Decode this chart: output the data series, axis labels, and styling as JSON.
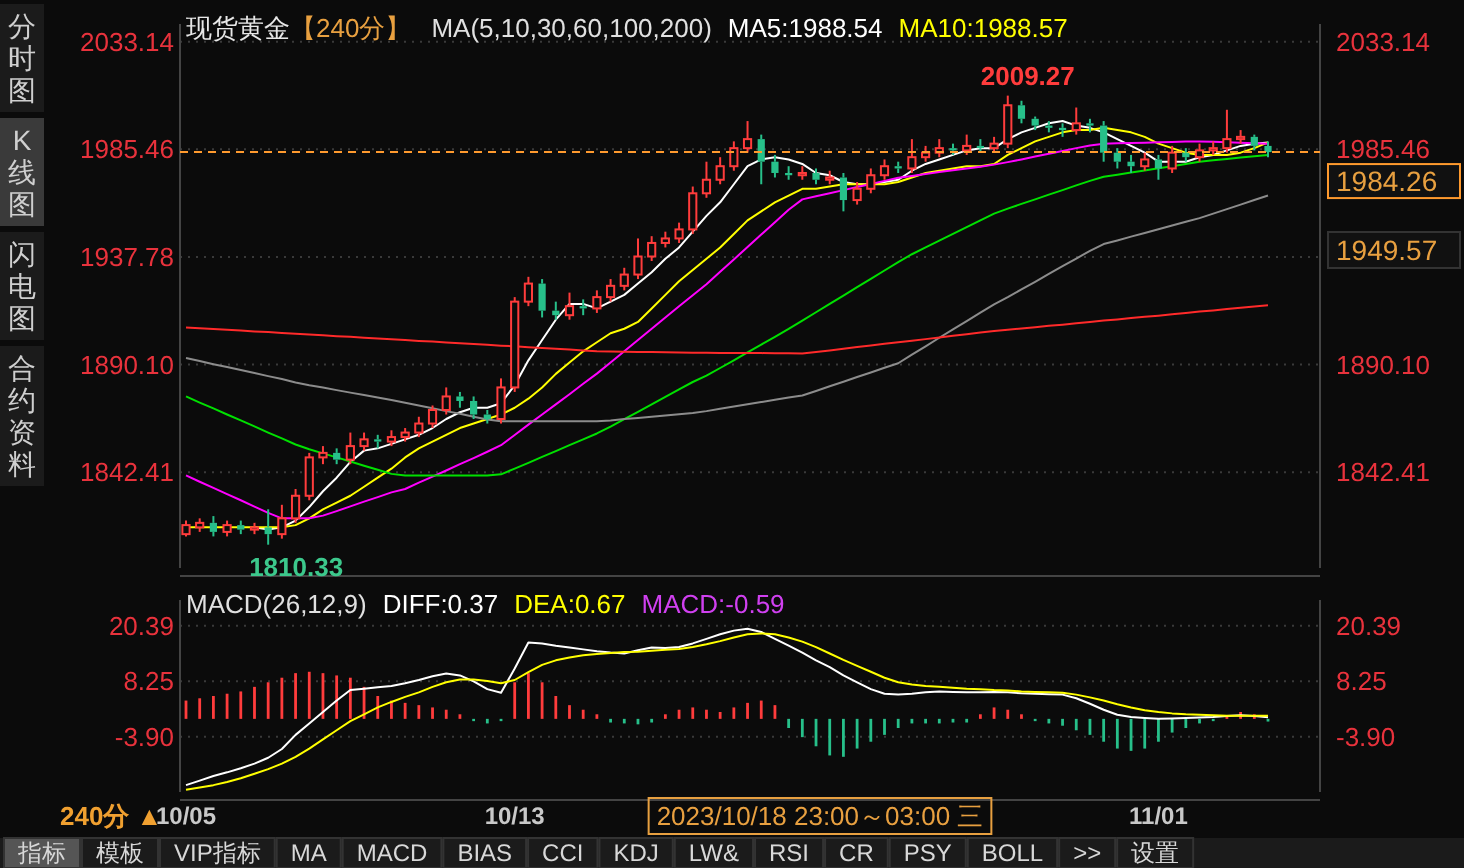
{
  "chart_data": [
    {
      "type": "candlestick",
      "title": "现货黄金",
      "subtitle": "【240分】",
      "legend": "top",
      "grid": "y",
      "tick_labels": "y",
      "categories": [
        null,
        null,
        null,
        null,
        null,
        null,
        null,
        null,
        null,
        null,
        null,
        null,
        null,
        null,
        null,
        null,
        null,
        null,
        null,
        null,
        null,
        null,
        null,
        null,
        null,
        null,
        null,
        null,
        null,
        null,
        null,
        null,
        null,
        null,
        null,
        null,
        null,
        null,
        null,
        null,
        null,
        null,
        null,
        null,
        null,
        null,
        null,
        null,
        null,
        null,
        null,
        null,
        null,
        null,
        null,
        null,
        null,
        null,
        null,
        null,
        null,
        null,
        null,
        null,
        null,
        null,
        null,
        null,
        null,
        null,
        null,
        null,
        null,
        null,
        null,
        null,
        null,
        null,
        null,
        null
      ],
      "ylim": [
        1800,
        2041
      ],
      "yticks": [
        2033.14,
        1985.46,
        1937.78,
        {
          "value": 1890.1,
          "label": "1890.10"
        },
        1842.41
      ],
      "y2lim": [
        1800,
        2041
      ],
      "y2ticks": [
        2033.14,
        1985.46,
        {
          "value": 1890.1,
          "label": "1890.10"
        },
        1842.41
      ],
      "ohlc": [
        [
          1815,
          1821,
          1814,
          1819
        ],
        [
          1818,
          1822,
          1816,
          1820
        ],
        [
          1820,
          1823,
          1814,
          1816
        ],
        [
          1816,
          1821,
          1814,
          1819
        ],
        [
          1819,
          1821,
          1815,
          1817
        ],
        [
          1817,
          1820,
          1815,
          1818
        ],
        [
          1818,
          1826,
          1810.33,
          1815
        ],
        [
          1815,
          1828,
          1813,
          1822
        ],
        [
          1822,
          1835,
          1820,
          1832
        ],
        [
          1832,
          1851,
          1830,
          1849
        ],
        [
          1849,
          1854,
          1846,
          1851
        ],
        [
          1851,
          1853,
          1846,
          1848
        ],
        [
          1848,
          1860,
          1846,
          1854
        ],
        [
          1854,
          1860,
          1852,
          1857
        ],
        [
          1857,
          1859,
          1853,
          1856
        ],
        [
          1856,
          1861,
          1854,
          1858
        ],
        [
          1858,
          1862,
          1856,
          1860
        ],
        [
          1860,
          1867,
          1858,
          1864
        ],
        [
          1864,
          1872,
          1862,
          1870
        ],
        [
          1870,
          1880,
          1868,
          1876
        ],
        [
          1876,
          1878,
          1871,
          1874
        ],
        [
          1874,
          1876,
          1866,
          1868
        ],
        [
          1868,
          1870,
          1864,
          1866
        ],
        [
          1866,
          1884,
          1864,
          1880
        ],
        [
          1880,
          1920,
          1878,
          1918
        ],
        [
          1918,
          1929,
          1916,
          1926
        ],
        [
          1926,
          1928,
          1911,
          1914
        ],
        [
          1914,
          1918,
          1910,
          1912
        ],
        [
          1912,
          1922,
          1910,
          1916
        ],
        [
          1916,
          1919,
          1912,
          1915
        ],
        [
          1915,
          1923,
          1913,
          1920
        ],
        [
          1920,
          1928,
          1918,
          1925
        ],
        [
          1925,
          1933,
          1923,
          1930
        ],
        [
          1930,
          1946,
          1928,
          1938
        ],
        [
          1938,
          1947,
          1936,
          1944
        ],
        [
          1944,
          1949,
          1942,
          1946
        ],
        [
          1946,
          1953,
          1944,
          1950
        ],
        [
          1950,
          1969,
          1948,
          1966
        ],
        [
          1966,
          1980,
          1964,
          1972
        ],
        [
          1972,
          1982,
          1970,
          1978
        ],
        [
          1978,
          1989,
          1976,
          1986
        ],
        [
          1986,
          1998,
          1984,
          1990
        ],
        [
          1990,
          1992,
          1970,
          1980
        ],
        [
          1980,
          1983,
          1973,
          1975
        ],
        [
          1975,
          1978,
          1972,
          1974
        ],
        [
          1974,
          1978,
          1972,
          1975
        ],
        [
          1975,
          1977,
          1970,
          1972
        ],
        [
          1972,
          1976,
          1970,
          1973
        ],
        [
          1973,
          1975,
          1958,
          1963
        ],
        [
          1963,
          1971,
          1961,
          1968
        ],
        [
          1968,
          1977,
          1966,
          1974
        ],
        [
          1974,
          1981,
          1972,
          1978
        ],
        [
          1978,
          1980,
          1975,
          1977
        ],
        [
          1977,
          1990,
          1975,
          1982
        ],
        [
          1982,
          1987,
          1980,
          1984
        ],
        [
          1984,
          1990,
          1982,
          1986
        ],
        [
          1986,
          1988,
          1983,
          1985
        ],
        [
          1985,
          1992,
          1983,
          1987
        ],
        [
          1987,
          1990,
          1984,
          1986
        ],
        [
          1986,
          1991,
          1984,
          1988
        ],
        [
          1988,
          2009.27,
          1986,
          2005
        ],
        [
          2005,
          2007,
          1997,
          1999
        ],
        [
          1999,
          2000,
          1994,
          1996
        ],
        [
          1996,
          1998,
          1993,
          1995
        ],
        [
          1995,
          1997,
          1991,
          1994
        ],
        [
          1994,
          2004,
          1992,
          1997
        ],
        [
          1997,
          1999,
          1993,
          1996
        ],
        [
          1996,
          1998,
          1980,
          1984
        ],
        [
          1984,
          1986,
          1977,
          1980
        ],
        [
          1980,
          1983,
          1975,
          1978
        ],
        [
          1978,
          1984,
          1976,
          1981
        ],
        [
          1981,
          1983,
          1972,
          1977
        ],
        [
          1977,
          1987,
          1975,
          1984
        ],
        [
          1984,
          1986,
          1980,
          1982
        ],
        [
          1982,
          1988,
          1980,
          1985
        ],
        [
          1985,
          1989,
          1983,
          1986
        ],
        [
          1986,
          2003,
          1984,
          1990
        ],
        [
          1990,
          1994,
          1988,
          1991
        ],
        [
          1991,
          1992,
          1985,
          1987
        ],
        [
          1987,
          1989,
          1982,
          1984.26
        ]
      ],
      "series": [
        {
          "type": "line",
          "name": "MA5:1988.54",
          "color": "#ffffff",
          "values": [
            null,
            null,
            null,
            null,
            null,
            1818,
            1817,
            1818,
            1821,
            1827,
            1834,
            1840,
            1847,
            1852,
            1853,
            1855,
            1857,
            1859,
            1862,
            1866,
            1869,
            1871,
            1871,
            1873,
            1881,
            1892,
            1901,
            1910,
            1917,
            1917,
            1915,
            1918,
            1921,
            1926,
            1931,
            1937,
            1942,
            1949,
            1956,
            1962,
            1970,
            1978,
            1981,
            1982,
            1981,
            1979,
            1975,
            1974,
            1971,
            1970,
            1970,
            1971,
            1972,
            1976,
            1979,
            1981,
            1983,
            1985,
            1986,
            1986,
            1990,
            1993,
            1995,
            1997,
            1998,
            1996,
            1995,
            1993,
            1990,
            1987,
            1984,
            1980,
            1980,
            1980,
            1982,
            1983,
            1985,
            1987,
            1988,
            1988.54
          ]
        },
        {
          "type": "line",
          "name": "MA10:1988.57",
          "color": "#ffff00",
          "values": [
            1818,
            1818,
            1818,
            1818,
            1818,
            1818,
            1818,
            1818,
            1819,
            1822,
            1826,
            1829,
            1832,
            1836,
            1840,
            1844,
            1849,
            1853,
            1856,
            1859,
            1862,
            1864,
            1866,
            1868,
            1871,
            1875,
            1880,
            1886,
            1891,
            1896,
            1900,
            1904,
            1906,
            1909,
            1915,
            1921,
            1927,
            1932,
            1937,
            1942,
            1948,
            1954,
            1958,
            1962,
            1965,
            1968,
            1968,
            1969,
            1970,
            1970,
            1970,
            1970,
            1971,
            1973,
            1975,
            1976,
            1977,
            1978,
            1978,
            1979,
            1983,
            1986,
            1989,
            1991,
            1993,
            1994,
            1994,
            1995,
            1994,
            1993,
            1991,
            1988,
            1986,
            1984,
            1983,
            1983,
            1983,
            1984,
            1986,
            1988.57
          ]
        },
        {
          "type": "line",
          "color": "#ff00ff",
          "values": [
            1841,
            1838.2,
            1835.5,
            1832.7,
            1830,
            1827.2,
            1824.4,
            1822,
            1822,
            1822,
            1823.2,
            1825.2,
            1827.3,
            1829.4,
            1831.4,
            1833.5,
            1835,
            1837.8,
            1840.5,
            1843.2,
            1846,
            1848.7,
            1851.5,
            1854.4,
            1858.9,
            1863.5,
            1868,
            1872.5,
            1877,
            1881.6,
            1886.1,
            1891,
            1896,
            1901,
            1906,
            1911,
            1916,
            1920.8,
            1925.7,
            1931.2,
            1936.7,
            1942.2,
            1947.7,
            1953.2,
            1958.7,
            1963.3,
            1964.7,
            1966,
            1967.4,
            1968.8,
            1970.1,
            1971.5,
            1972.9,
            1973.7,
            1974.5,
            1975.4,
            1976.2,
            1977,
            1977.8,
            1978.7,
            1979.8,
            1981,
            1982.3,
            1983.5,
            1984.7,
            1986,
            1987.2,
            1988,
            1988.2,
            1988.3,
            1988.4,
            1988.6,
            1988.7,
            1988.9,
            1989,
            1988.8,
            1988.6,
            1988.4,
            1988.2,
            1988
          ]
        },
        {
          "type": "line",
          "color": "#00e000",
          "values": [
            1876,
            1873.3,
            1870.7,
            1868,
            1865.4,
            1862.7,
            1860,
            1857.4,
            1854.7,
            1852.6,
            1850.8,
            1849,
            1847.2,
            1845.3,
            1843.5,
            1841.7,
            1841,
            1841,
            1841,
            1841,
            1841,
            1841,
            1841,
            1841.5,
            1844,
            1846.6,
            1849.2,
            1851.8,
            1854.4,
            1857,
            1859.6,
            1862.6,
            1865.9,
            1869.2,
            1872.5,
            1875.8,
            1879.1,
            1882.4,
            1885.2,
            1888.6,
            1892,
            1895.5,
            1899,
            1902.4,
            1905.9,
            1909.6,
            1913.3,
            1917,
            1920.7,
            1924.4,
            1928.1,
            1931.8,
            1935.5,
            1939,
            1942,
            1945,
            1948,
            1951,
            1954,
            1957,
            1959.2,
            1961.3,
            1963.3,
            1965.4,
            1967.4,
            1969.5,
            1971.5,
            1973.3,
            1974.2,
            1975.2,
            1976.1,
            1977.1,
            1978,
            1979,
            1980,
            1980.6,
            1981.2,
            1981.8,
            1982.4,
            1983
          ]
        },
        {
          "type": "line",
          "color": "#8c8c8c",
          "values": [
            1893,
            1891.7,
            1890.3,
            1889,
            1887.7,
            1886.4,
            1885,
            1883.7,
            1882.2,
            1881,
            1880,
            1878.8,
            1877.7,
            1876.6,
            1875.5,
            1874.4,
            1873.2,
            1872,
            1870.8,
            1869.5,
            1868.3,
            1867,
            1865.8,
            1865,
            1865,
            1865,
            1865,
            1865,
            1865,
            1865,
            1865,
            1865.4,
            1866,
            1866.5,
            1867,
            1867.6,
            1868.1,
            1868.7,
            1869.5,
            1870.5,
            1871.5,
            1872.5,
            1873.5,
            1874.5,
            1875.5,
            1876.4,
            1878.4,
            1880.5,
            1882.5,
            1884.6,
            1886.6,
            1888.7,
            1890.7,
            1894.5,
            1898.2,
            1902,
            1905.7,
            1909.4,
            1913.1,
            1916.8,
            1920,
            1923.4,
            1926.8,
            1930.3,
            1933.7,
            1937.1,
            1940.5,
            1943.5,
            1945.1,
            1946.8,
            1948.4,
            1950.1,
            1951.7,
            1953.4,
            1955,
            1957,
            1959,
            1961,
            1963,
            1965
          ]
        },
        {
          "type": "line",
          "color": "#ff2a2a",
          "values": [
            1906.6,
            1906.2,
            1905.9,
            1905.5,
            1905.2,
            1904.8,
            1904.5,
            1904.1,
            1903.8,
            1903.4,
            1903.1,
            1902.7,
            1902.4,
            1902,
            1901.7,
            1901.3,
            1901,
            1900.6,
            1900.3,
            1899.9,
            1899.6,
            1899.2,
            1898.9,
            1898.5,
            1898.2,
            1897.8,
            1897.5,
            1897.1,
            1896.8,
            1896.4,
            1896.0,
            1895.9,
            1895.8,
            1895.7,
            1895.7,
            1895.6,
            1895.5,
            1895.4,
            1895.4,
            1895.3,
            1895.3,
            1895.2,
            1895.2,
            1895.1,
            1895.1,
            1895.0,
            1895.7,
            1896.4,
            1897.1,
            1897.9,
            1898.6,
            1899.3,
            1900,
            1900.7,
            1901.4,
            1902.1,
            1902.9,
            1903.6,
            1904.3,
            1905.0,
            1905.6,
            1906.1,
            1906.7,
            1907.3,
            1907.8,
            1908.4,
            1909,
            1909.6,
            1910.1,
            1910.7,
            1911.3,
            1911.8,
            1912.4,
            1913,
            1913.6,
            1914.1,
            1914.7,
            1915.3,
            1915.8,
            1916.4
          ]
        }
      ],
      "ref_lines": [
        {
          "axis": "y2",
          "value": 1984.26,
          "label": "1984.26",
          "color": "#ff9a2e",
          "line_style": "dashed"
        }
      ],
      "annotations": [
        "MA(5,10,30,60,100,200)",
        "2009.27",
        "1810.33",
        "1949.57"
      ]
    },
    {
      "type": "line",
      "legend": "top left",
      "grid": "y",
      "categories": [
        "10/05",
        null,
        null,
        null,
        null,
        null,
        null,
        null,
        null,
        null,
        null,
        null,
        null,
        null,
        null,
        null,
        null,
        null,
        null,
        null,
        null,
        null,
        null,
        null,
        "10/13",
        null,
        null,
        null,
        null,
        null,
        null,
        null,
        null,
        null,
        null,
        null,
        null,
        null,
        null,
        null,
        null,
        null,
        null,
        null,
        null,
        null,
        null,
        null,
        null,
        null,
        null,
        null,
        null,
        null,
        null,
        null,
        null,
        null,
        null,
        null,
        null,
        null,
        null,
        null,
        null,
        null,
        null,
        null,
        null,
        null,
        null,
        "11/01",
        null,
        null,
        null,
        null,
        null,
        null,
        null,
        null
      ],
      "ylim": [
        -16,
        26
      ],
      "yticks": [
        20.39,
        8.25,
        {
          "value": -3.9,
          "label": "-3.90"
        }
      ],
      "y2lim": [
        -16,
        26
      ],
      "y2ticks": [
        20.39,
        8.25,
        {
          "value": -3.9,
          "label": "-3.90"
        }
      ],
      "series": [
        {
          "type": "bar",
          "values": [
            4,
            4.5,
            5,
            5.5,
            6,
            7,
            8,
            9,
            10,
            10.3,
            10,
            9.5,
            9,
            7,
            5,
            4,
            3.5,
            3,
            2.5,
            2,
            1,
            -0.5,
            -1,
            -0.5,
            8,
            10,
            8,
            5,
            3,
            2,
            1,
            -0.8,
            -1,
            -1.2,
            -0.8,
            1,
            2,
            2.5,
            2,
            1.5,
            2.5,
            3.5,
            4,
            3,
            -2,
            -4,
            -6,
            -8,
            -8.3,
            -6.5,
            -5,
            -3.5,
            -2,
            -1,
            -1,
            -1,
            -0.8,
            -0.8,
            1,
            2.5,
            2,
            1,
            -0.5,
            -1,
            -1.5,
            -2.5,
            -3.5,
            -5,
            -6.5,
            -7,
            -6.5,
            -5,
            -3,
            -2,
            -1,
            -0.5,
            0.5,
            1.5,
            1,
            -0.59
          ],
          "colors": [
            "#ff3c3c",
            "#ff3c3c",
            "#ff3c3c",
            "#ff3c3c",
            "#ff3c3c",
            "#ff3c3c",
            "#ff3c3c",
            "#ff3c3c",
            "#ff3c3c",
            "#ff3c3c",
            "#ff3c3c",
            "#ff3c3c",
            "#ff3c3c",
            "#ff3c3c",
            "#ff3c3c",
            "#ff3c3c",
            "#ff3c3c",
            "#ff3c3c",
            "#ff3c3c",
            "#ff3c3c",
            "#ff3c3c",
            "#27c08a",
            "#27c08a",
            "#27c08a",
            "#ff3c3c",
            "#ff3c3c",
            "#ff3c3c",
            "#ff3c3c",
            "#ff3c3c",
            "#ff3c3c",
            "#ff3c3c",
            "#27c08a",
            "#27c08a",
            "#27c08a",
            "#27c08a",
            "#ff3c3c",
            "#ff3c3c",
            "#ff3c3c",
            "#ff3c3c",
            "#ff3c3c",
            "#ff3c3c",
            "#ff3c3c",
            "#ff3c3c",
            "#ff3c3c",
            "#27c08a",
            "#27c08a",
            "#27c08a",
            "#27c08a",
            "#27c08a",
            "#27c08a",
            "#27c08a",
            "#27c08a",
            "#27c08a",
            "#27c08a",
            "#27c08a",
            "#27c08a",
            "#27c08a",
            "#27c08a",
            "#ff3c3c",
            "#ff3c3c",
            "#ff3c3c",
            "#ff3c3c",
            "#27c08a",
            "#27c08a",
            "#27c08a",
            "#27c08a",
            "#27c08a",
            "#27c08a",
            "#27c08a",
            "#27c08a",
            "#27c08a",
            "#27c08a",
            "#27c08a",
            "#27c08a",
            "#27c08a",
            "#27c08a",
            "#ff3c3c",
            "#ff3c3c",
            "#ff3c3c",
            "#27c08a"
          ]
        },
        {
          "type": "line",
          "name": "DIFF:0.37",
          "color": "#ffffff",
          "values": [
            -14.5,
            -13.5,
            -12.5,
            -11.7,
            -10.8,
            -9.8,
            -8.5,
            -6.6,
            -3.5,
            -1,
            1.5,
            4,
            6.3,
            6.6,
            6.9,
            7.2,
            7.8,
            8.5,
            9.3,
            9.9,
            9.5,
            8.2,
            6.5,
            5.7,
            11,
            16.7,
            16.5,
            16,
            15.6,
            15.2,
            14.8,
            14.5,
            14.3,
            15,
            15.6,
            15.5,
            15.7,
            16.5,
            17.5,
            18.5,
            19.3,
            19.7,
            19,
            17.5,
            16,
            14.5,
            12.8,
            11.3,
            9.5,
            8,
            6.5,
            5.5,
            5.3,
            5.5,
            5.8,
            6,
            5.9,
            5.8,
            5.8,
            5.9,
            5.8,
            5.6,
            5.5,
            5.4,
            5.3,
            4.5,
            3.3,
            2,
            0.9,
            0.4,
            0.2,
            0,
            0.1,
            0.2,
            0.3,
            0.4,
            0.6,
            0.8,
            0.6,
            0.37
          ]
        },
        {
          "type": "line",
          "name": "DEA:0.67",
          "color": "#ffff00",
          "values": [
            -15.5,
            -15,
            -14.5,
            -13.8,
            -13,
            -12,
            -11,
            -9.8,
            -8.3,
            -6.5,
            -4.5,
            -2.5,
            -0.5,
            1,
            2.5,
            3.7,
            4.8,
            5.8,
            7,
            8,
            8.6,
            8.6,
            8.3,
            7.8,
            8.5,
            10.2,
            11.8,
            12.8,
            13.4,
            13.9,
            14.2,
            14.4,
            14.6,
            14.7,
            14.9,
            15.1,
            15.3,
            15.7,
            16.3,
            17,
            17.8,
            18.5,
            18.7,
            18.5,
            17.8,
            16.9,
            15.7,
            14.3,
            12.9,
            11.6,
            10.3,
            9,
            8,
            7.5,
            7.2,
            7,
            6.8,
            6.6,
            6.5,
            6.3,
            6.2,
            6,
            5.9,
            5.8,
            5.7,
            5.3,
            4.7,
            4,
            3.2,
            2.5,
            1.9,
            1.5,
            1.2,
            1,
            0.9,
            0.8,
            0.7,
            0.7,
            0.7,
            0.67
          ]
        }
      ],
      "annotations": [
        "MACD(26,12,9)",
        "MACD:-0.59",
        "2023/10/18 23:00～03:00 三"
      ]
    },
    {
      "type": "other",
      "annotations": [
        "分时图",
        "K线图",
        "闪电图",
        "合约资料"
      ]
    },
    {
      "type": "other",
      "annotations": [
        "240分 ▲",
        "指标",
        "模板",
        "VIP指标",
        "MA",
        "MACD",
        "BIAS",
        "CCI",
        "KDJ",
        "LW&",
        "RSI",
        "CR",
        "PSY",
        "BOLL",
        ">>",
        "设置"
      ]
    }
  ]
}
